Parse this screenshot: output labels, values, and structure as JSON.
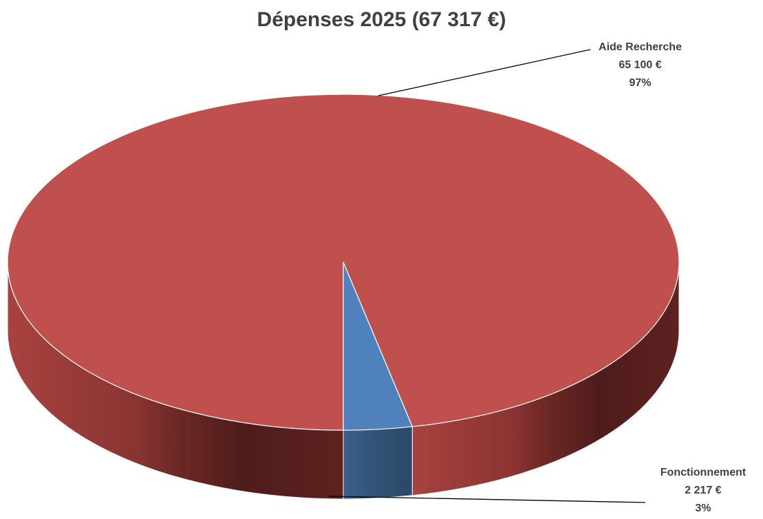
{
  "chart_data": {
    "type": "pie",
    "title": "Dépenses 2025 (67 317 €)",
    "style": "3d",
    "series": [
      {
        "values": [
          65100,
          2217
        ],
        "categories": [
          "Aide Recherche",
          "Fonctionnement"
        ]
      }
    ],
    "slices": [
      {
        "name": "Aide Recherche",
        "value": 65100,
        "value_label": "65 100 €",
        "percent": 97,
        "percent_label": "97%",
        "color": "#C0504D"
      },
      {
        "name": "Fonctionnement",
        "value": 2217,
        "value_label": "2 217 €",
        "percent": 3,
        "percent_label": "3%",
        "color": "#4F81BD"
      }
    ],
    "legend": "none"
  }
}
